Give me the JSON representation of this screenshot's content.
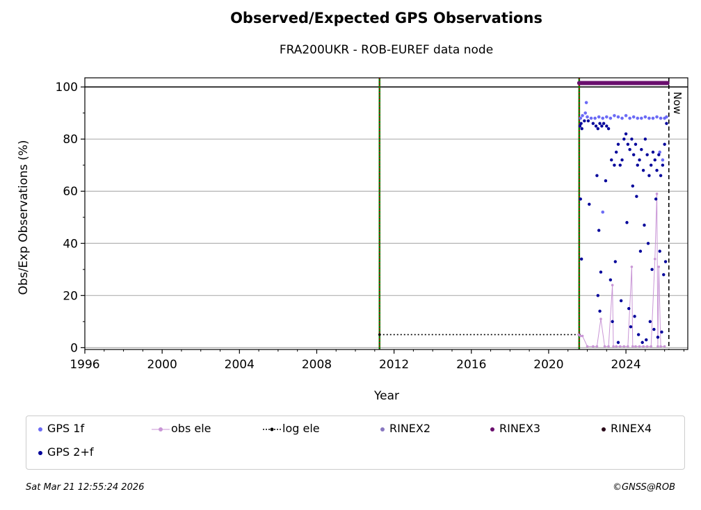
{
  "title": "Observed/Expected GPS Observations",
  "subtitle": "FRA200UKR - ROB-EUREF data node",
  "footer": {
    "timestamp": "Sat Mar 21 12:55:24 2026",
    "credit": "©GNSS@ROB"
  },
  "legend": {
    "items": [
      {
        "label": "GPS 1f",
        "color": "#6b6bf5",
        "marker": "dot"
      },
      {
        "label": "obs ele",
        "color": "#c996d6",
        "marker": "line-dot"
      },
      {
        "label": "log ele",
        "color": "#000000",
        "marker": "dotted-line"
      },
      {
        "label": "RINEX2",
        "color": "#8877c0",
        "marker": "dot"
      },
      {
        "label": "RINEX3",
        "color": "#6a0f6e",
        "marker": "dot"
      },
      {
        "label": "RINEX4",
        "color": "#2a0a1a",
        "marker": "dot"
      },
      {
        "label": "GPS 2+f",
        "color": "#00009a",
        "marker": "dot"
      }
    ]
  },
  "chart_data": {
    "type": "scatter",
    "title": "Observed/Expected GPS Observations",
    "subtitle": "FRA200UKR - ROB-EUREF data node",
    "xlabel": "Year",
    "ylabel": "Obs/Exp Observations (%)",
    "xlim": [
      1996,
      2027.2
    ],
    "ylim": [
      -0.7,
      103.5
    ],
    "x_ticks": [
      1996,
      2000,
      2004,
      2008,
      2012,
      2016,
      2020,
      2024
    ],
    "y_ticks": [
      0,
      20,
      40,
      60,
      80,
      100
    ],
    "grid": "horizontal",
    "legend_position": "bottom",
    "now_label": "Now",
    "now_x": 2026.22,
    "reference_line_y": 100,
    "event_lines": [
      {
        "x": 2011.25,
        "style": "green-red-dashed"
      },
      {
        "x": 2021.58,
        "style": "green-red-dashed"
      }
    ],
    "log_ele": {
      "x": [
        2011.25,
        2021.58
      ],
      "y": [
        5,
        5
      ]
    },
    "rinex3_band": {
      "x_start": 2021.58,
      "x_end": 2026.15,
      "y": 101.5
    },
    "series": [
      {
        "name": "GPS 1f",
        "color": "#6b6bf5",
        "x": [
          2021.65,
          2021.75,
          2021.9,
          2022.0,
          2022.2,
          2022.4,
          2022.6,
          2022.8,
          2023.0,
          2023.2,
          2023.4,
          2023.6,
          2023.8,
          2024.0,
          2024.2,
          2024.4,
          2024.6,
          2024.8,
          2025.0,
          2025.2,
          2025.4,
          2025.6,
          2025.8,
          2026.0,
          2026.1,
          2021.95,
          2022.8,
          2025.75,
          2025.9
        ],
        "y": [
          88,
          89,
          90,
          88.5,
          88,
          88,
          88.5,
          88,
          88.5,
          88,
          89,
          88.5,
          88,
          89,
          88,
          88.5,
          88,
          88,
          88.5,
          88,
          88,
          88.5,
          88,
          88,
          88.5,
          94,
          52,
          75,
          72
        ]
      },
      {
        "name": "GPS 2+f",
        "color": "#00009a",
        "x": [
          2021.62,
          2021.68,
          2021.72,
          2021.85,
          2022.05,
          2022.3,
          2022.45,
          2022.55,
          2022.65,
          2022.75,
          2022.85,
          2023.0,
          2023.1,
          2023.25,
          2023.4,
          2023.5,
          2023.6,
          2023.7,
          2023.8,
          2023.9,
          2024.0,
          2024.1,
          2024.2,
          2024.3,
          2024.4,
          2024.5,
          2024.6,
          2024.7,
          2024.8,
          2024.9,
          2025.0,
          2025.1,
          2025.2,
          2025.3,
          2025.4,
          2025.5,
          2025.6,
          2025.7,
          2025.8,
          2025.9,
          2026.0,
          2026.1,
          2021.65,
          2021.7,
          2022.1,
          2022.5,
          2022.6,
          2022.7,
          2022.95,
          2023.2,
          2023.45,
          2023.75,
          2024.05,
          2024.15,
          2024.35,
          2024.55,
          2024.75,
          2024.95,
          2025.15,
          2025.35,
          2025.55,
          2025.75,
          2025.95,
          2026.05,
          2022.55,
          2022.65,
          2023.3,
          2023.6,
          2024.25,
          2024.45,
          2024.65,
          2024.85,
          2025.05,
          2025.25,
          2025.45,
          2025.65,
          2025.85
        ],
        "y": [
          85,
          86,
          84,
          87,
          87,
          86,
          85,
          84,
          86,
          85,
          86,
          85,
          84,
          72,
          70,
          75,
          78,
          70,
          72,
          80,
          82,
          78,
          76,
          80,
          74,
          78,
          70,
          72,
          76,
          68,
          80,
          74,
          66,
          70,
          75,
          72,
          68,
          74,
          66,
          70,
          78,
          86,
          57,
          34,
          55,
          66,
          45,
          29,
          64,
          26,
          33,
          18,
          48,
          15,
          62,
          58,
          37,
          47,
          40,
          30,
          57,
          37,
          28,
          33,
          20,
          14,
          10,
          2,
          8,
          12,
          5,
          2,
          3,
          10,
          7,
          4,
          6
        ]
      },
      {
        "name": "obs ele",
        "color": "#c996d6",
        "x": [
          2021.55,
          2021.65,
          2021.75,
          2022.0,
          2022.3,
          2022.5,
          2022.7,
          2022.9,
          2023.1,
          2023.3,
          2023.35,
          2023.5,
          2023.7,
          2023.9,
          2024.1,
          2024.3,
          2024.35,
          2024.5,
          2024.7,
          2024.9,
          2025.1,
          2025.3,
          2025.5,
          2025.6,
          2025.65,
          2025.7,
          2025.8,
          2026.0
        ],
        "y": [
          5,
          4.5,
          4.5,
          0.5,
          0.5,
          0.5,
          11,
          0.5,
          0.5,
          24,
          0.5,
          0.5,
          0.5,
          0.5,
          0.5,
          31,
          0.5,
          0.5,
          0.5,
          0.5,
          0.5,
          0.5,
          34,
          59,
          0.5,
          31,
          0.5,
          0.5
        ]
      }
    ]
  }
}
